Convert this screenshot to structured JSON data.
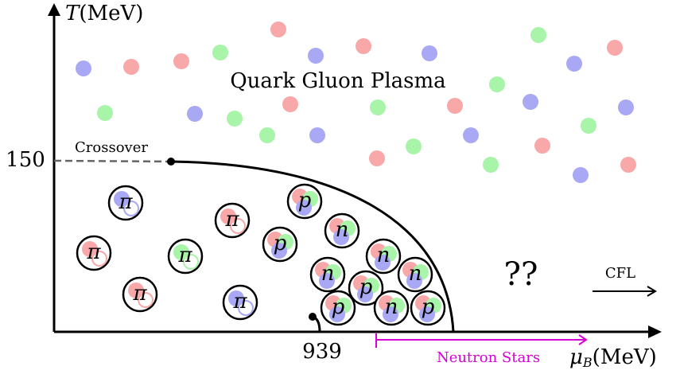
{
  "axes": {
    "y_symbol": "T",
    "y_unit": "(MeV)",
    "x_symbol": "μ",
    "x_subscript": "B",
    "x_unit": "(MeV)",
    "y_mark": "150",
    "x_mark": "939"
  },
  "labels": {
    "crossover": "Crossover",
    "qgp": "Quark Gluon Plasma",
    "unknown": "??",
    "cfl": "CFL",
    "neutron_stars": "Neutron Stars"
  },
  "hadrons": [
    "π",
    "π",
    "π",
    "π",
    "π",
    "π",
    "p",
    "p",
    "p",
    "p",
    "p",
    "n",
    "n",
    "n",
    "n",
    "n"
  ]
}
